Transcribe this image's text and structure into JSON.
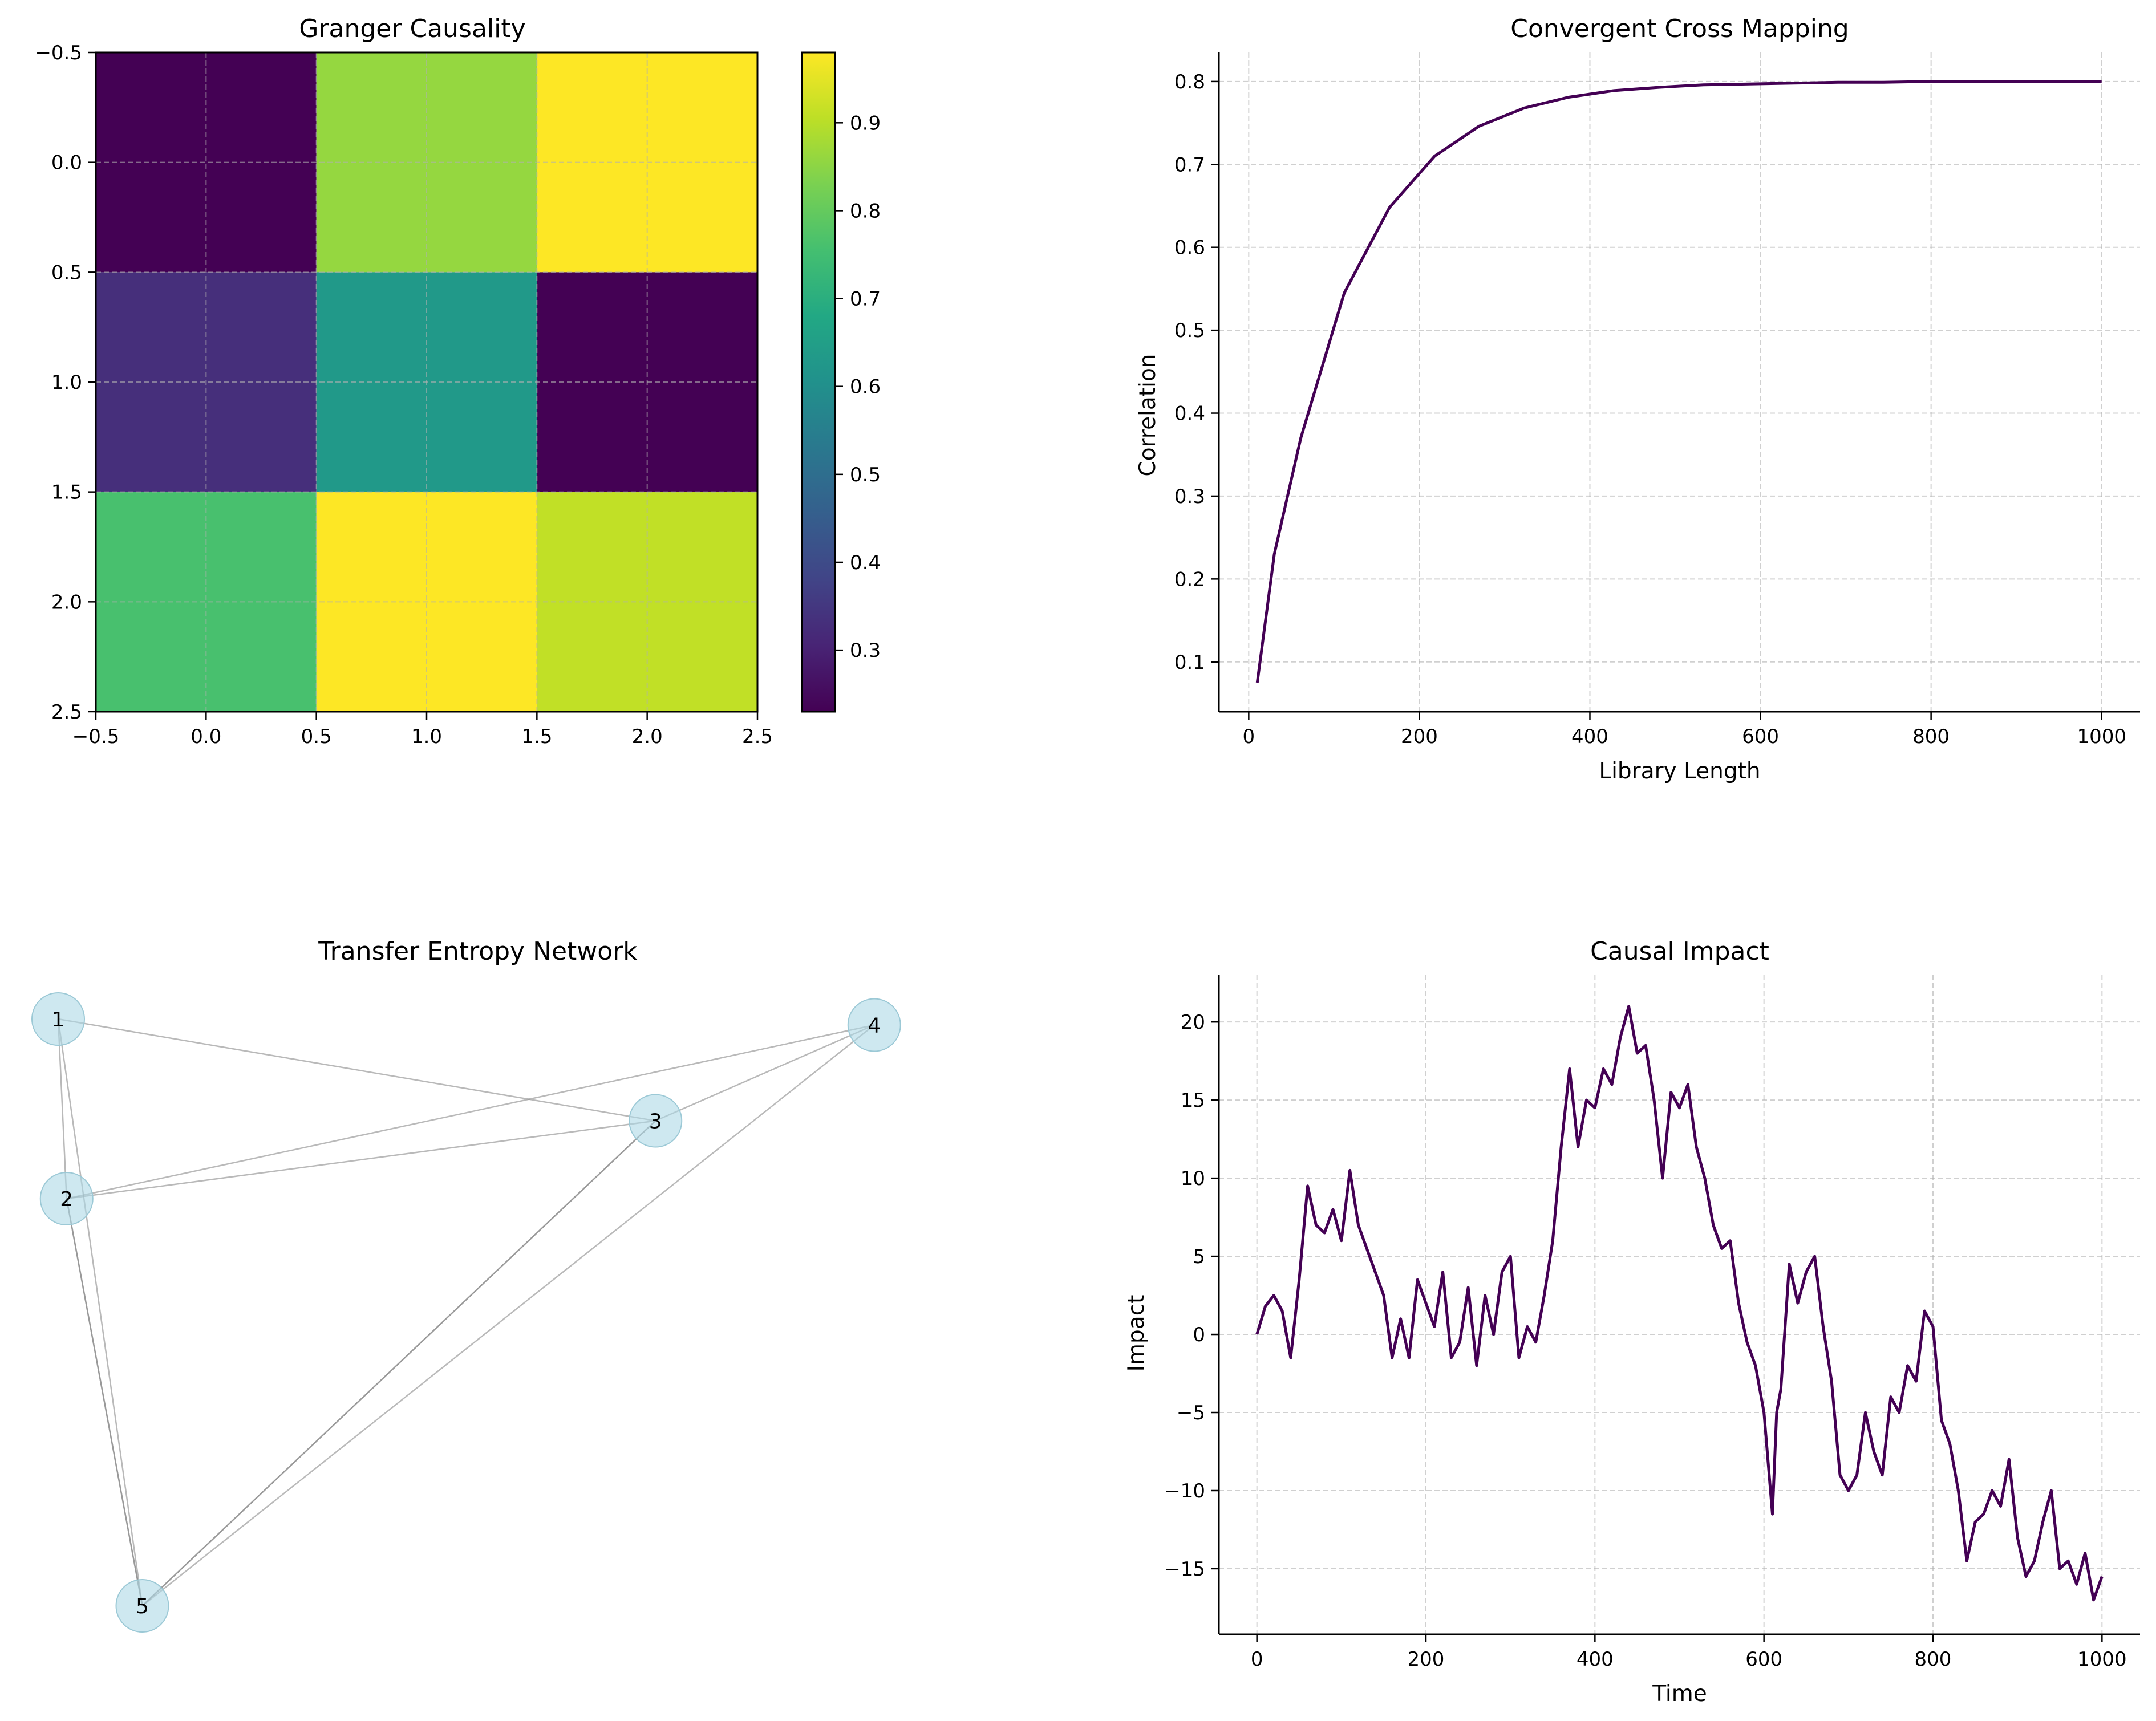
{
  "chart_data": [
    {
      "type": "heatmap",
      "title": "Granger Causality",
      "matrix": [
        [
          0.23,
          0.86,
          0.98
        ],
        [
          0.33,
          0.63,
          0.23
        ],
        [
          0.76,
          0.98,
          0.91
        ]
      ],
      "colormap": "viridis",
      "xlim": [
        -0.5,
        2.5
      ],
      "ylim": [
        2.5,
        -0.5
      ],
      "xticks": [
        "−0.5",
        "0.0",
        "0.5",
        "1.0",
        "1.5",
        "2.0",
        "2.5"
      ],
      "yticks": [
        "−0.5",
        "0.0",
        "0.5",
        "1.0",
        "1.5",
        "2.0",
        "2.5"
      ],
      "colorbar": {
        "range": [
          0.23,
          0.98
        ],
        "ticks": [
          "0.3",
          "0.4",
          "0.5",
          "0.6",
          "0.7",
          "0.8",
          "0.9"
        ]
      },
      "grid": true
    },
    {
      "type": "line",
      "title": "Convergent Cross Mapping",
      "xlabel": "Library Length",
      "ylabel": "Correlation",
      "x": [
        10,
        30,
        61,
        112,
        165,
        218,
        270,
        323,
        375,
        428,
        481,
        533,
        586,
        639,
        691,
        744,
        797,
        849,
        902,
        955,
        1000
      ],
      "y": [
        0.075,
        0.23,
        0.37,
        0.545,
        0.648,
        0.71,
        0.746,
        0.768,
        0.781,
        0.789,
        0.793,
        0.796,
        0.797,
        0.798,
        0.799,
        0.799,
        0.8,
        0.8,
        0.8,
        0.8,
        0.8
      ],
      "xlim": [
        -35,
        1045
      ],
      "ylim": [
        0.04,
        0.835
      ],
      "xticks": [
        "0",
        "200",
        "400",
        "600",
        "800",
        "1000"
      ],
      "yticks": [
        "0.1",
        "0.2",
        "0.3",
        "0.4",
        "0.5",
        "0.6",
        "0.7",
        "0.8"
      ],
      "color": "#440154",
      "grid": true
    },
    {
      "type": "network",
      "title": "Transfer Entropy Network",
      "nodes": [
        {
          "label": "1",
          "x": 0.0,
          "y": 0.98
        },
        {
          "label": "2",
          "x": 0.01,
          "y": 0.68
        },
        {
          "label": "3",
          "x": 0.71,
          "y": 0.81
        },
        {
          "label": "4",
          "x": 0.97,
          "y": 0.97
        },
        {
          "label": "5",
          "x": 0.1,
          "y": 0.0
        }
      ],
      "edges": [
        [
          0,
          1
        ],
        [
          0,
          2
        ],
        [
          0,
          4
        ],
        [
          1,
          2
        ],
        [
          1,
          3
        ],
        [
          1,
          4
        ],
        [
          1,
          4
        ],
        [
          2,
          3
        ],
        [
          2,
          4
        ],
        [
          2,
          4
        ],
        [
          3,
          4
        ]
      ],
      "node_color": "#add8e6",
      "edge_color": "#808080"
    },
    {
      "type": "line",
      "title": "Causal Impact",
      "xlabel": "Time",
      "ylabel": "Impact",
      "x": [
        0,
        10,
        20,
        30,
        40,
        50,
        60,
        70,
        80,
        90,
        100,
        110,
        120,
        130,
        140,
        150,
        160,
        170,
        180,
        190,
        200,
        210,
        220,
        230,
        240,
        250,
        260,
        270,
        280,
        290,
        300,
        310,
        320,
        330,
        340,
        350,
        360,
        370,
        380,
        390,
        400,
        410,
        420,
        430,
        440,
        450,
        460,
        470,
        480,
        490,
        500,
        510,
        520,
        530,
        540,
        550,
        560,
        570,
        580,
        590,
        600,
        610,
        615,
        620,
        630,
        640,
        650,
        660,
        670,
        680,
        690,
        700,
        710,
        720,
        730,
        740,
        750,
        760,
        770,
        780,
        790,
        800,
        810,
        820,
        830,
        840,
        850,
        860,
        870,
        880,
        890,
        900,
        910,
        920,
        930,
        940,
        950,
        960,
        970,
        980,
        990,
        1000
      ],
      "y": [
        0,
        1.8,
        2.5,
        1.5,
        -1.5,
        3.5,
        9.5,
        7.0,
        6.5,
        8.0,
        6.0,
        10.5,
        7.0,
        5.5,
        4.0,
        2.5,
        -1.5,
        1.0,
        -1.5,
        3.5,
        2.0,
        0.5,
        4.0,
        -1.5,
        -0.5,
        3.0,
        -2.0,
        2.5,
        0.0,
        4.0,
        5.0,
        -1.5,
        0.5,
        -0.5,
        2.5,
        6.0,
        12.0,
        17.0,
        12.0,
        15.0,
        14.5,
        17.0,
        16.0,
        19.0,
        21.0,
        18.0,
        18.5,
        15.0,
        10.0,
        15.5,
        14.5,
        16.0,
        12.0,
        10.0,
        7.0,
        5.5,
        6.0,
        2.0,
        -0.5,
        -2.0,
        -5.0,
        -11.5,
        -5.0,
        -3.5,
        4.5,
        2.0,
        4.0,
        5.0,
        0.5,
        -3.0,
        -9.0,
        -10.0,
        -9.0,
        -5.0,
        -7.5,
        -9.0,
        -4.0,
        -5.0,
        -2.0,
        -3.0,
        1.5,
        0.5,
        -5.5,
        -7.0,
        -10.0,
        -14.5,
        -12.0,
        -11.5,
        -10.0,
        -11.0,
        -8.0,
        -13.0,
        -15.5,
        -14.5,
        -12.0,
        -10.0,
        -15.0,
        -14.5,
        -16.0,
        -14.0,
        -17.0,
        -15.5
      ],
      "xlim": [
        -45,
        1045
      ],
      "ylim": [
        -19.2,
        23.0
      ],
      "xticks": [
        "0",
        "200",
        "400",
        "600",
        "800",
        "1000"
      ],
      "yticks": [
        "−15",
        "−10",
        "−5",
        "0",
        "5",
        "10",
        "15",
        "20"
      ],
      "color": "#440154",
      "grid": true
    }
  ]
}
